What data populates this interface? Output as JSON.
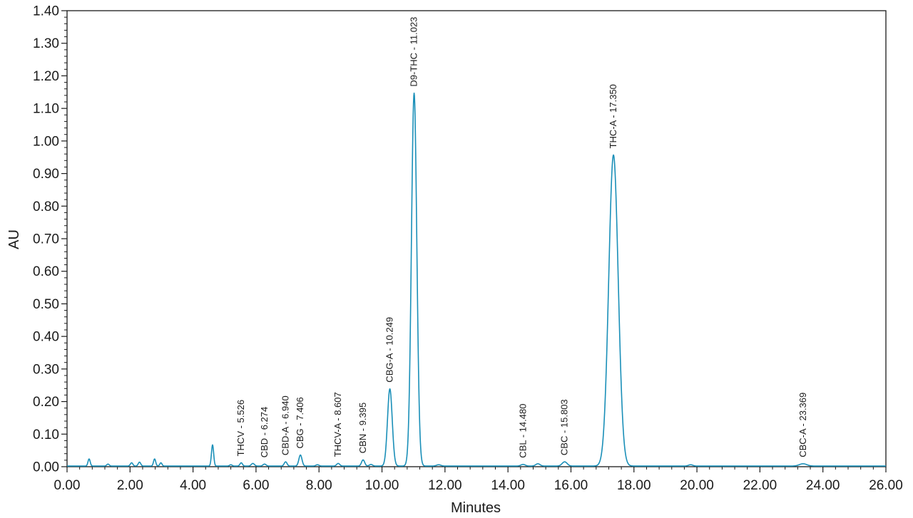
{
  "chart_data": {
    "type": "line",
    "xlabel": "Minutes",
    "ylabel": "AU",
    "xlim": [
      0,
      26
    ],
    "ylim": [
      0,
      1.4
    ],
    "x_ticks": [
      "0.00",
      "2.00",
      "4.00",
      "6.00",
      "8.00",
      "10.00",
      "12.00",
      "14.00",
      "16.00",
      "18.00",
      "20.00",
      "22.00",
      "24.00",
      "26.00"
    ],
    "y_ticks": [
      "0.00",
      "0.10",
      "0.20",
      "0.30",
      "0.40",
      "0.50",
      "0.60",
      "0.70",
      "0.80",
      "0.90",
      "1.00",
      "1.10",
      "1.20",
      "1.30",
      "1.40"
    ],
    "line_color": "#1a8fb8",
    "grid": false,
    "peaks": [
      {
        "label": "",
        "x": 0.7,
        "y": 0.022,
        "w": 0.035
      },
      {
        "label": "",
        "x": 1.3,
        "y": 0.006,
        "w": 0.04
      },
      {
        "label": "",
        "x": 2.05,
        "y": 0.01,
        "w": 0.04
      },
      {
        "label": "",
        "x": 2.3,
        "y": 0.012,
        "w": 0.04
      },
      {
        "label": "",
        "x": 2.78,
        "y": 0.022,
        "w": 0.035
      },
      {
        "label": "",
        "x": 2.98,
        "y": 0.01,
        "w": 0.035
      },
      {
        "label": "",
        "x": 4.62,
        "y": 0.065,
        "w": 0.035
      },
      {
        "label": "",
        "x": 5.2,
        "y": 0.004,
        "w": 0.04
      },
      {
        "label": "THCV - 5.526",
        "x": 5.53,
        "y": 0.01,
        "w": 0.04
      },
      {
        "label": "",
        "x": 5.9,
        "y": 0.008,
        "w": 0.05
      },
      {
        "label": "CBD - 6.274",
        "x": 6.27,
        "y": 0.006,
        "w": 0.05
      },
      {
        "label": "CBD-A - 6.940",
        "x": 6.94,
        "y": 0.013,
        "w": 0.045
      },
      {
        "label": "CBG - 7.406",
        "x": 7.41,
        "y": 0.034,
        "w": 0.05
      },
      {
        "label": "",
        "x": 7.95,
        "y": 0.004,
        "w": 0.05
      },
      {
        "label": "THCV-A - 8.607",
        "x": 8.61,
        "y": 0.008,
        "w": 0.05
      },
      {
        "label": "CBN - 9.395",
        "x": 9.4,
        "y": 0.019,
        "w": 0.05
      },
      {
        "label": "",
        "x": 9.65,
        "y": 0.005,
        "w": 0.05
      },
      {
        "label": "CBG-A - 10.249",
        "x": 10.25,
        "y": 0.237,
        "w": 0.075
      },
      {
        "label": "D9-THC - 11.023",
        "x": 11.02,
        "y": 1.145,
        "w": 0.085
      },
      {
        "label": "",
        "x": 11.8,
        "y": 0.004,
        "w": 0.07
      },
      {
        "label": "CBL - 14.480",
        "x": 14.48,
        "y": 0.005,
        "w": 0.07
      },
      {
        "label": "",
        "x": 14.95,
        "y": 0.007,
        "w": 0.07
      },
      {
        "label": "CBC - 15.803",
        "x": 15.8,
        "y": 0.013,
        "w": 0.08
      },
      {
        "label": "THC-A - 17.350",
        "x": 17.35,
        "y": 0.955,
        "w": 0.15
      },
      {
        "label": "",
        "x": 19.8,
        "y": 0.004,
        "w": 0.07
      },
      {
        "label": "CBC-A - 23.369",
        "x": 23.37,
        "y": 0.007,
        "w": 0.12
      }
    ]
  }
}
